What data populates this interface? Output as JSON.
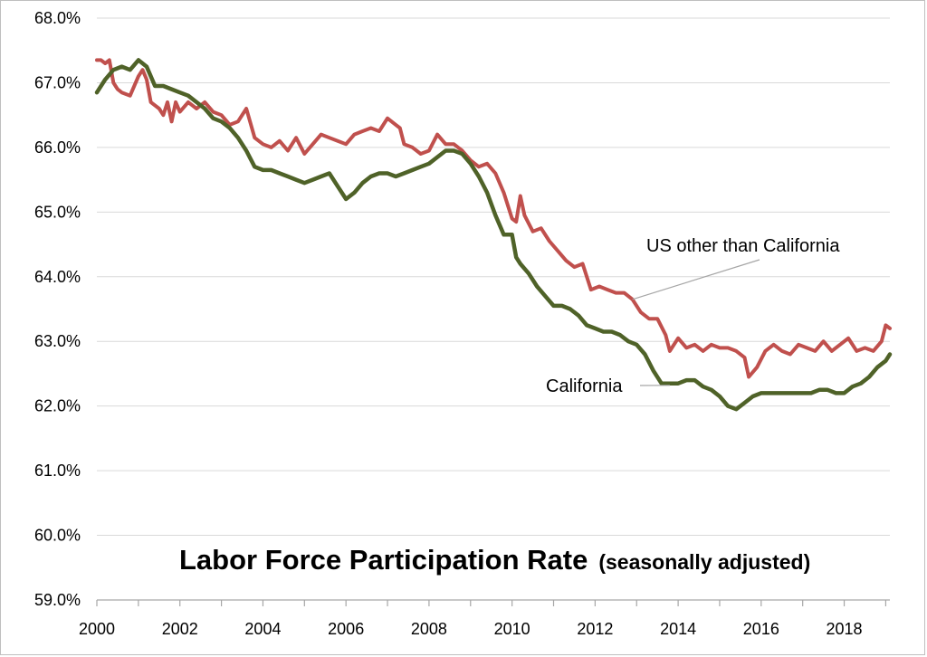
{
  "chart_data": {
    "type": "line",
    "title": "Labor Force Participation  Rate",
    "subtitle": "(seasonally adjusted)",
    "xlabel": "",
    "ylabel": "",
    "xlim": [
      2000,
      2019.1
    ],
    "ylim": [
      59.0,
      68.0
    ],
    "y_ticks": [
      "59.0%",
      "60.0%",
      "61.0%",
      "62.0%",
      "63.0%",
      "64.0%",
      "65.0%",
      "66.0%",
      "67.0%",
      "68.0%"
    ],
    "x_ticks": [
      "2000",
      "2002",
      "2004",
      "2006",
      "2008",
      "2010",
      "2012",
      "2014",
      "2016",
      "2018"
    ],
    "grid": "horizontal",
    "series": [
      {
        "name": "US other than California",
        "color": "#c0504d",
        "x": [
          2000.0,
          2000.1,
          2000.2,
          2000.3,
          2000.4,
          2000.5,
          2000.6,
          2000.8,
          2001.0,
          2001.1,
          2001.2,
          2001.3,
          2001.5,
          2001.6,
          2001.7,
          2001.8,
          2001.9,
          2002.0,
          2002.2,
          2002.4,
          2002.6,
          2002.8,
          2003.0,
          2003.2,
          2003.4,
          2003.6,
          2003.8,
          2004.0,
          2004.2,
          2004.4,
          2004.6,
          2004.8,
          2005.0,
          2005.2,
          2005.4,
          2005.6,
          2005.8,
          2006.0,
          2006.2,
          2006.4,
          2006.6,
          2006.8,
          2007.0,
          2007.2,
          2007.3,
          2007.4,
          2007.6,
          2007.8,
          2008.0,
          2008.2,
          2008.4,
          2008.6,
          2008.8,
          2009.0,
          2009.2,
          2009.4,
          2009.6,
          2009.8,
          2010.0,
          2010.1,
          2010.2,
          2010.3,
          2010.5,
          2010.7,
          2010.9,
          2011.1,
          2011.3,
          2011.5,
          2011.7,
          2011.9,
          2012.1,
          2012.3,
          2012.5,
          2012.7,
          2012.9,
          2013.1,
          2013.3,
          2013.5,
          2013.7,
          2013.8,
          2014.0,
          2014.2,
          2014.4,
          2014.6,
          2014.8,
          2015.0,
          2015.2,
          2015.4,
          2015.6,
          2015.7,
          2015.9,
          2016.1,
          2016.3,
          2016.5,
          2016.7,
          2016.9,
          2017.1,
          2017.3,
          2017.5,
          2017.7,
          2017.9,
          2018.1,
          2018.3,
          2018.5,
          2018.7,
          2018.9,
          2019.0,
          2019.1
        ],
        "values": [
          67.35,
          67.35,
          67.3,
          67.35,
          67.0,
          66.9,
          66.85,
          66.8,
          67.1,
          67.2,
          67.05,
          66.7,
          66.6,
          66.5,
          66.7,
          66.4,
          66.7,
          66.55,
          66.7,
          66.6,
          66.7,
          66.55,
          66.5,
          66.35,
          66.4,
          66.6,
          66.15,
          66.05,
          66.0,
          66.1,
          65.95,
          66.15,
          65.9,
          66.05,
          66.2,
          66.15,
          66.1,
          66.05,
          66.2,
          66.25,
          66.3,
          66.25,
          66.45,
          66.35,
          66.3,
          66.05,
          66.0,
          65.9,
          65.95,
          66.2,
          66.05,
          66.05,
          65.95,
          65.8,
          65.7,
          65.75,
          65.6,
          65.3,
          64.9,
          64.85,
          65.25,
          64.95,
          64.7,
          64.75,
          64.55,
          64.4,
          64.25,
          64.15,
          64.2,
          63.8,
          63.85,
          63.8,
          63.75,
          63.75,
          63.65,
          63.45,
          63.35,
          63.35,
          63.1,
          62.85,
          63.05,
          62.9,
          62.95,
          62.85,
          62.95,
          62.9,
          62.9,
          62.85,
          62.75,
          62.45,
          62.6,
          62.85,
          62.95,
          62.85,
          62.8,
          62.95,
          62.9,
          62.85,
          63.0,
          62.85,
          62.95,
          63.05,
          62.85,
          62.9,
          62.85,
          63.0,
          63.25,
          63.2
        ]
      },
      {
        "name": "California",
        "color": "#4f6228",
        "x": [
          2000.0,
          2000.2,
          2000.4,
          2000.6,
          2000.8,
          2001.0,
          2001.2,
          2001.4,
          2001.6,
          2001.8,
          2002.0,
          2002.2,
          2002.4,
          2002.6,
          2002.8,
          2003.0,
          2003.2,
          2003.4,
          2003.6,
          2003.8,
          2004.0,
          2004.2,
          2004.4,
          2004.6,
          2004.8,
          2005.0,
          2005.2,
          2005.4,
          2005.6,
          2005.8,
          2006.0,
          2006.2,
          2006.4,
          2006.6,
          2006.8,
          2007.0,
          2007.2,
          2007.4,
          2007.6,
          2007.8,
          2008.0,
          2008.2,
          2008.4,
          2008.6,
          2008.8,
          2009.0,
          2009.2,
          2009.4,
          2009.6,
          2009.8,
          2010.0,
          2010.1,
          2010.2,
          2010.4,
          2010.6,
          2010.8,
          2011.0,
          2011.2,
          2011.4,
          2011.6,
          2011.8,
          2012.0,
          2012.2,
          2012.4,
          2012.6,
          2012.8,
          2013.0,
          2013.2,
          2013.4,
          2013.6,
          2013.8,
          2014.0,
          2014.2,
          2014.4,
          2014.6,
          2014.8,
          2015.0,
          2015.2,
          2015.4,
          2015.6,
          2015.8,
          2016.0,
          2016.2,
          2016.4,
          2016.6,
          2016.8,
          2017.0,
          2017.2,
          2017.4,
          2017.6,
          2017.8,
          2018.0,
          2018.2,
          2018.4,
          2018.6,
          2018.8,
          2019.0,
          2019.1
        ],
        "values": [
          66.85,
          67.05,
          67.2,
          67.25,
          67.2,
          67.35,
          67.25,
          66.95,
          66.95,
          66.9,
          66.85,
          66.8,
          66.7,
          66.6,
          66.45,
          66.4,
          66.3,
          66.15,
          65.95,
          65.7,
          65.65,
          65.65,
          65.6,
          65.55,
          65.5,
          65.45,
          65.5,
          65.55,
          65.6,
          65.4,
          65.2,
          65.3,
          65.45,
          65.55,
          65.6,
          65.6,
          65.55,
          65.6,
          65.65,
          65.7,
          65.75,
          65.85,
          65.95,
          65.95,
          65.9,
          65.75,
          65.55,
          65.3,
          64.95,
          64.65,
          64.65,
          64.3,
          64.2,
          64.05,
          63.85,
          63.7,
          63.55,
          63.55,
          63.5,
          63.4,
          63.25,
          63.2,
          63.15,
          63.15,
          63.1,
          63.0,
          62.95,
          62.8,
          62.55,
          62.35,
          62.35,
          62.35,
          62.4,
          62.4,
          62.3,
          62.25,
          62.15,
          62.0,
          61.95,
          62.05,
          62.15,
          62.2,
          62.2,
          62.2,
          62.2,
          62.2,
          62.2,
          62.2,
          62.25,
          62.25,
          62.2,
          62.2,
          62.3,
          62.35,
          62.45,
          62.6,
          62.7,
          62.8
        ]
      }
    ],
    "annotations": [
      {
        "text": "US other than California",
        "series": "US other than California"
      },
      {
        "text": "California",
        "series": "California"
      }
    ]
  }
}
